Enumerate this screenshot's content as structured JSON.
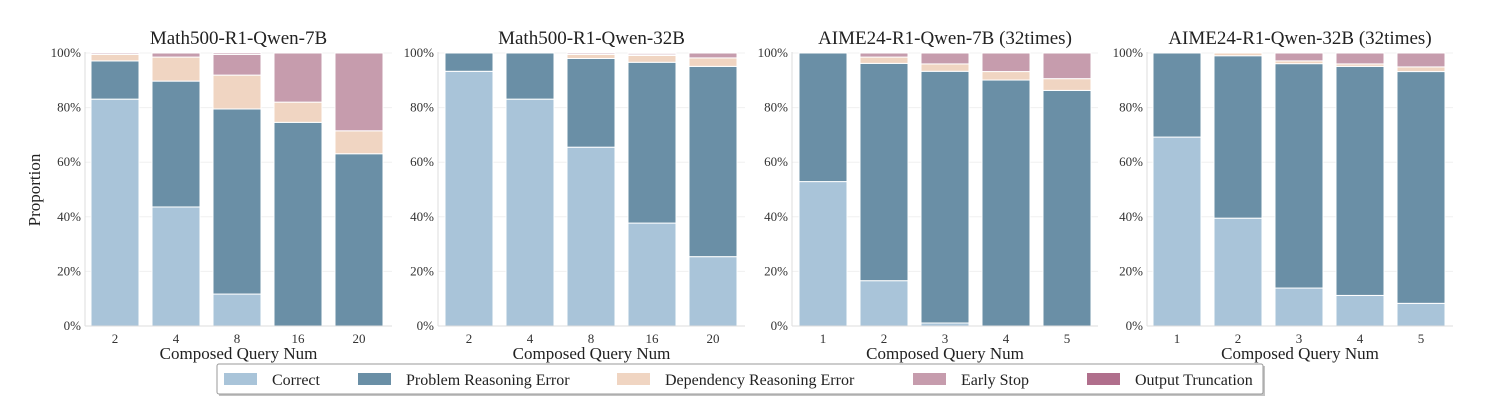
{
  "chart_data": {
    "type": "bar",
    "stacked": true,
    "ylabel": "Proportion",
    "ylim": [
      0,
      100
    ],
    "yticks": [
      "0%",
      "20%",
      "40%",
      "60%",
      "80%",
      "100%"
    ],
    "grid": true,
    "legend": {
      "placement": "bottom",
      "entries": [
        "Correct",
        "Problem Reasoning Error",
        "Dependency Reasoning Error",
        "Early Stop",
        "Output Truncation"
      ]
    },
    "colors": {
      "Correct": "#a9c4d9",
      "Problem Reasoning Error": "#6a8fa6",
      "Dependency Reasoning Error": "#f0d5c2",
      "Early Stop": "#c69cad",
      "Output Truncation": "#b06f8c"
    },
    "panels": [
      {
        "title": "Math500-R1-Qwen-7B",
        "xlabel": "Composed Query Num",
        "categories": [
          "2",
          "4",
          "8",
          "16",
          "20"
        ],
        "series": [
          {
            "name": "Correct",
            "values": [
              83.1,
              43.6,
              11.7,
              0,
              0
            ]
          },
          {
            "name": "Problem Reasoning Error",
            "values": [
              14.0,
              46.1,
              67.8,
              74.6,
              63.1
            ]
          },
          {
            "name": "Dependency Reasoning Error",
            "values": [
              2.4,
              8.8,
              12.4,
              7.4,
              8.4
            ]
          },
          {
            "name": "Early Stop",
            "values": [
              0.5,
              1.5,
              7.6,
              18.0,
              28.5
            ]
          },
          {
            "name": "Output Truncation",
            "values": [
              0,
              0,
              0.5,
              0,
              0
            ]
          }
        ]
      },
      {
        "title": "Math500-R1-Qwen-32B",
        "xlabel": "Composed Query Num",
        "categories": [
          "2",
          "4",
          "8",
          "16",
          "20"
        ],
        "series": [
          {
            "name": "Correct",
            "values": [
              93.3,
              83.1,
              65.5,
              37.7,
              25.4
            ]
          },
          {
            "name": "Problem Reasoning Error",
            "values": [
              6.7,
              16.9,
              32.5,
              58.9,
              69.7
            ]
          },
          {
            "name": "Dependency Reasoning Error",
            "values": [
              0,
              0,
              1.5,
              2.5,
              3.1
            ]
          },
          {
            "name": "Early Stop",
            "values": [
              0,
              0,
              0.5,
              0.5,
              1.8
            ]
          },
          {
            "name": "Output Truncation",
            "values": [
              0,
              0,
              0,
              0.4,
              0
            ]
          }
        ]
      },
      {
        "title": "AIME24-R1-Qwen-7B (32times)",
        "xlabel": "Composed Query Num",
        "categories": [
          "1",
          "2",
          "3",
          "4",
          "5"
        ],
        "series": [
          {
            "name": "Correct",
            "values": [
              52.9,
              16.6,
              1.1,
              0,
              0
            ]
          },
          {
            "name": "Problem Reasoning Error",
            "values": [
              47.1,
              79.6,
              92.2,
              90.1,
              86.3
            ]
          },
          {
            "name": "Dependency Reasoning Error",
            "values": [
              0,
              2.3,
              2.7,
              3.1,
              4.3
            ]
          },
          {
            "name": "Early Stop",
            "values": [
              0,
              1.5,
              4.0,
              6.8,
              9.4
            ]
          },
          {
            "name": "Output Truncation",
            "values": [
              0,
              0,
              0,
              0,
              0
            ]
          }
        ]
      },
      {
        "title": "AIME24-R1-Qwen-32B (32times)",
        "xlabel": "Composed Query Num",
        "categories": [
          "1",
          "2",
          "3",
          "4",
          "5"
        ],
        "series": [
          {
            "name": "Correct",
            "values": [
              69.2,
              39.5,
              13.9,
              11.2,
              8.3
            ]
          },
          {
            "name": "Problem Reasoning Error",
            "values": [
              30.8,
              59.5,
              82.2,
              83.9,
              84.9
            ]
          },
          {
            "name": "Dependency Reasoning Error",
            "values": [
              0,
              1.0,
              1.0,
              0.9,
              1.7
            ]
          },
          {
            "name": "Early Stop",
            "values": [
              0,
              0,
              2.9,
              4.0,
              5.1
            ]
          },
          {
            "name": "Output Truncation",
            "values": [
              0,
              0,
              0,
              0,
              0
            ]
          }
        ]
      }
    ]
  }
}
